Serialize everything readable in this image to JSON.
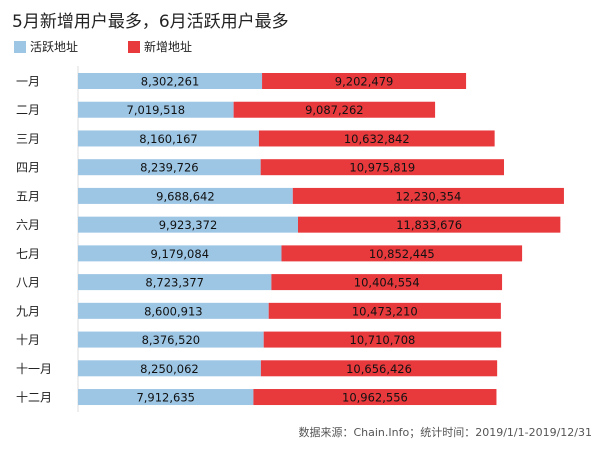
{
  "chart_data": {
    "type": "bar",
    "stacked": true,
    "orientation": "horizontal",
    "title": "5月新增用户最多，6月活跃用户最多",
    "categories": [
      "一月",
      "二月",
      "三月",
      "四月",
      "五月",
      "六月",
      "七月",
      "八月",
      "九月",
      "十月",
      "十一月",
      "十二月"
    ],
    "series": [
      {
        "name": "活跃地址",
        "color": "#9DC6E5",
        "values": [
          8302261,
          7019518,
          8160167,
          8239726,
          9688642,
          9923372,
          9179084,
          8723377,
          8600913,
          8376520,
          8250062,
          7912635
        ]
      },
      {
        "name": "新增地址",
        "color": "#E8393D",
        "values": [
          9202479,
          9087262,
          10632842,
          10975819,
          12230354,
          11833676,
          10852445,
          10404554,
          10473210,
          10710708,
          10656426,
          10962556
        ]
      }
    ],
    "legend_position": "top-left",
    "grid": false,
    "source": "数据来源：Chain.Info；统计时间：2019/1/1-2019/12/31"
  }
}
